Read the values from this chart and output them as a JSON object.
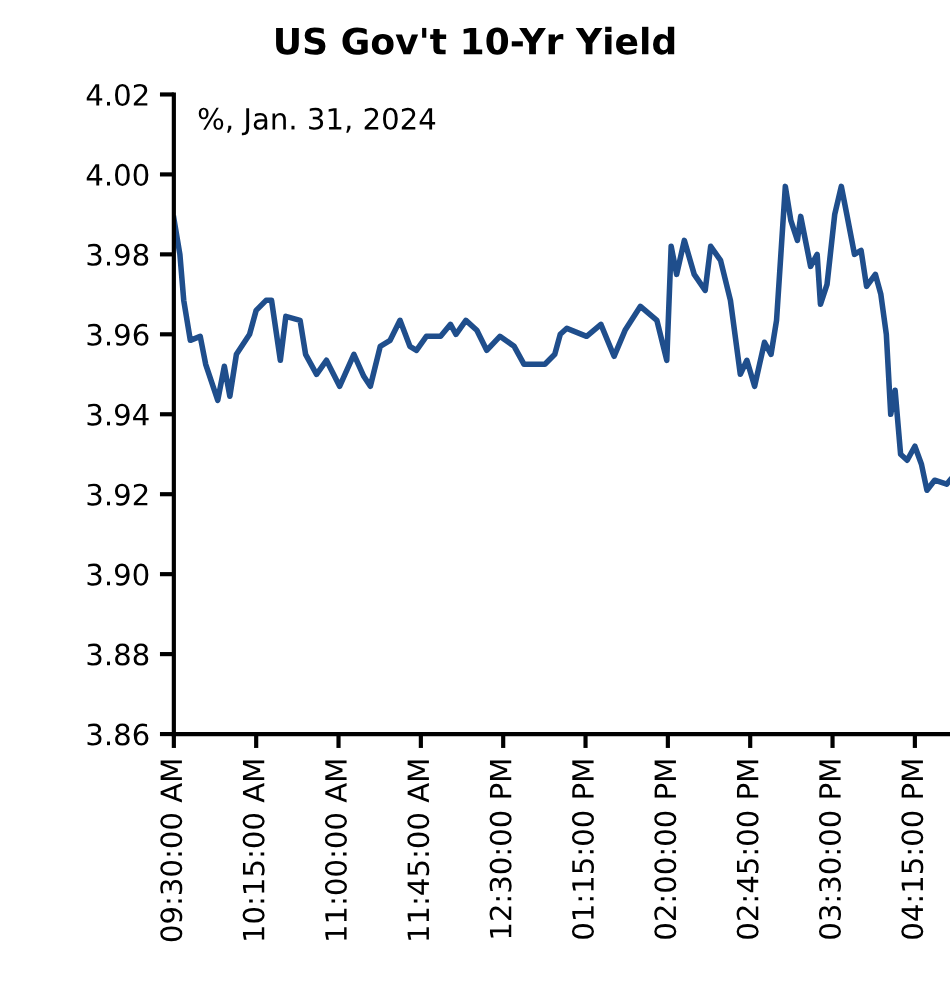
{
  "chart_data": {
    "type": "line",
    "title": "US Gov't 10-Yr Yield",
    "subtitle": "%, Jan. 31, 2024",
    "x": [
      9.5,
      9.555,
      9.59,
      9.65,
      9.74,
      9.79,
      9.9,
      9.96,
      10.01,
      10.07,
      10.19,
      10.25,
      10.34,
      10.39,
      10.47,
      10.52,
      10.65,
      10.7,
      10.8,
      10.89,
      11.01,
      11.14,
      11.23,
      11.29,
      11.38,
      11.47,
      11.56,
      11.65,
      11.71,
      11.8,
      11.93,
      12.02,
      12.07,
      12.16,
      12.26,
      12.35,
      12.47,
      12.6,
      12.69,
      12.88,
      12.97,
      13.02,
      13.08,
      13.26,
      13.39,
      13.51,
      13.61,
      13.75,
      13.9,
      13.99,
      14.03,
      14.08,
      14.15,
      14.24,
      14.34,
      14.39,
      14.48,
      14.57,
      14.66,
      14.72,
      14.79,
      14.88,
      14.94,
      14.99,
      15.07,
      15.12,
      15.18,
      15.21,
      15.3,
      15.36,
      15.39,
      15.45,
      15.52,
      15.58,
      15.63,
      15.7,
      15.76,
      15.81,
      15.89,
      15.94,
      15.99,
      16.03,
      16.07,
      16.12,
      16.18,
      16.25,
      16.31,
      16.36,
      16.43,
      16.54,
      16.57
    ],
    "series": [
      {
        "color": "#1f4e8c",
        "values": [
          3.989,
          3.98,
          3.9685,
          3.9585,
          3.9595,
          3.9525,
          3.9435,
          3.952,
          3.9445,
          3.955,
          3.96,
          3.966,
          3.9685,
          3.9685,
          3.9535,
          3.9645,
          3.9635,
          3.955,
          3.95,
          3.9535,
          3.947,
          3.955,
          3.9495,
          3.947,
          3.957,
          3.9585,
          3.9635,
          3.957,
          3.956,
          3.9595,
          3.9595,
          3.9625,
          3.96,
          3.9635,
          3.961,
          3.956,
          3.9595,
          3.957,
          3.9525,
          3.9525,
          3.955,
          3.96,
          3.9615,
          3.9595,
          3.9625,
          3.9545,
          3.961,
          3.967,
          3.9635,
          3.9535,
          3.982,
          3.975,
          3.9835,
          3.975,
          3.971,
          3.982,
          3.9785,
          3.9685,
          3.95,
          3.9535,
          3.947,
          3.958,
          3.955,
          3.9635,
          3.997,
          3.9885,
          3.9835,
          3.9895,
          3.977,
          3.98,
          3.9675,
          3.9725,
          3.99,
          3.997,
          3.99,
          3.98,
          3.981,
          3.972,
          3.975,
          3.97,
          3.96,
          3.94,
          3.946,
          3.93,
          3.9285,
          3.932,
          3.9275,
          3.921,
          3.9235,
          3.9225,
          3.9235
        ]
      }
    ],
    "xlim": [
      9.5,
      16.57
    ],
    "xticks": [
      {
        "value": 9.5,
        "label": "09:30:00 AM"
      },
      {
        "value": 10.25,
        "label": "10:15:00 AM"
      },
      {
        "value": 11.0,
        "label": "11:00:00 AM"
      },
      {
        "value": 11.75,
        "label": "11:45:00 AM"
      },
      {
        "value": 12.5,
        "label": "12:30:00 PM"
      },
      {
        "value": 13.25,
        "label": "01:15:00 PM"
      },
      {
        "value": 14.0,
        "label": "02:00:00 PM"
      },
      {
        "value": 14.75,
        "label": "02:45:00 PM"
      },
      {
        "value": 15.5,
        "label": "03:30:00 PM"
      },
      {
        "value": 16.25,
        "label": "04:15:00 PM"
      }
    ],
    "ylim": [
      3.86,
      4.02
    ],
    "yticks": [
      {
        "value": 3.86,
        "label": "3.86"
      },
      {
        "value": 3.88,
        "label": "3.88"
      },
      {
        "value": 3.9,
        "label": "3.90"
      },
      {
        "value": 3.92,
        "label": "3.92"
      },
      {
        "value": 3.94,
        "label": "3.94"
      },
      {
        "value": 3.96,
        "label": "3.96"
      },
      {
        "value": 3.98,
        "label": "3.98"
      },
      {
        "value": 4.0,
        "label": "4.00"
      },
      {
        "value": 4.02,
        "label": "4.02"
      }
    ],
    "grid": false,
    "legend": false
  }
}
